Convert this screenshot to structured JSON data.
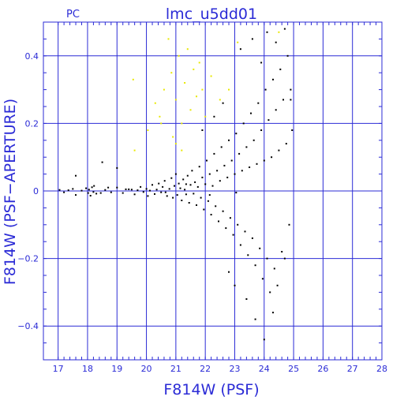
{
  "chart_data": {
    "type": "scatter",
    "title": "lmc_u5dd01",
    "corner_label": "PC",
    "xlabel": "F814W (PSF)",
    "ylabel": "F814W (PSF−APERTURE)",
    "xlim": [
      16.5,
      28
    ],
    "ylim": [
      -0.5,
      0.5
    ],
    "x_ticks": [
      17,
      18,
      19,
      20,
      21,
      22,
      23,
      24,
      25,
      26,
      27,
      28
    ],
    "y_ticks": [
      -0.4,
      -0.2,
      0,
      0.2,
      0.4
    ],
    "y_tick_labels": [
      "−0.4",
      "−0.2",
      "0",
      "0.2",
      "0.4"
    ],
    "grid": true,
    "colors": {
      "axes": "#2b2bd6",
      "grid": "#2b2bd6",
      "points_main": "#000000",
      "points_flagged": "#e8e800"
    },
    "series": [
      {
        "color": "#000000",
        "points": [
          [
            17.05,
            0.003
          ],
          [
            17.2,
            -0.004
          ],
          [
            17.35,
            0.002
          ],
          [
            17.5,
            0.006
          ],
          [
            17.6,
            -0.012
          ],
          [
            17.8,
            0.001
          ],
          [
            17.95,
            0.008
          ],
          [
            18.02,
            -0.006
          ],
          [
            18.05,
            0.004
          ],
          [
            18.1,
            -0.014
          ],
          [
            18.15,
            0.011
          ],
          [
            18.2,
            -0.003
          ],
          [
            18.22,
            0.015
          ],
          [
            18.3,
            -0.008
          ],
          [
            18.45,
            -0.006
          ],
          [
            18.6,
            0.003
          ],
          [
            18.8,
            -0.004
          ],
          [
            19.0,
            0.01
          ],
          [
            19.2,
            -0.006
          ],
          [
            19.4,
            0.005
          ],
          [
            19.5,
            0.004
          ],
          [
            19.6,
            -0.01
          ],
          [
            19.7,
            0.002
          ],
          [
            19.8,
            0.012
          ],
          [
            19.9,
            -0.003
          ],
          [
            20.0,
            0.006
          ],
          [
            20.05,
            -0.015
          ],
          [
            20.12,
            0.001
          ],
          [
            20.2,
            0.018
          ],
          [
            20.28,
            -0.009
          ],
          [
            20.35,
            0.004
          ],
          [
            20.42,
            0.022
          ],
          [
            20.5,
            -0.004
          ],
          [
            20.55,
            0.012
          ],
          [
            20.62,
            0.03
          ],
          [
            20.7,
            -0.015
          ],
          [
            20.78,
            0.006
          ],
          [
            20.85,
            0.038
          ],
          [
            20.9,
            -0.02
          ],
          [
            20.95,
            0.015
          ],
          [
            21.0,
            0.05
          ],
          [
            21.05,
            -0.012
          ],
          [
            21.1,
            0.022
          ],
          [
            21.15,
            0.008
          ],
          [
            21.2,
            -0.028
          ],
          [
            21.25,
            0.034
          ],
          [
            21.3,
            0.004
          ],
          [
            21.35,
            -0.01
          ],
          [
            21.4,
            0.045
          ],
          [
            21.45,
            -0.035
          ],
          [
            21.5,
            0.018
          ],
          [
            21.55,
            0.06
          ],
          [
            21.6,
            -0.008
          ],
          [
            21.65,
            0.026
          ],
          [
            21.7,
            -0.042
          ],
          [
            21.75,
            0.012
          ],
          [
            21.8,
            0.072
          ],
          [
            21.85,
            -0.02
          ],
          [
            21.9,
            0.04
          ],
          [
            21.95,
            -0.055
          ],
          [
            22.0,
            0.02
          ],
          [
            22.05,
            0.09
          ],
          [
            22.1,
            -0.03
          ],
          [
            22.15,
            0.05
          ],
          [
            22.2,
            -0.07
          ],
          [
            22.25,
            0.015
          ],
          [
            22.3,
            0.11
          ],
          [
            22.35,
            -0.045
          ],
          [
            22.4,
            0.06
          ],
          [
            22.45,
            -0.09
          ],
          [
            22.5,
            0.03
          ],
          [
            22.55,
            0.13
          ],
          [
            22.6,
            -0.06
          ],
          [
            22.65,
            0.075
          ],
          [
            22.7,
            -0.11
          ],
          [
            22.75,
            0.04
          ],
          [
            22.8,
            0.15
          ],
          [
            22.85,
            -0.08
          ],
          [
            22.9,
            0.09
          ],
          [
            22.95,
            -0.13
          ],
          [
            23.0,
            0.05
          ],
          [
            23.05,
            0.17
          ],
          [
            23.1,
            -0.1
          ],
          [
            23.15,
            0.11
          ],
          [
            23.2,
            -0.16
          ],
          [
            23.25,
            0.06
          ],
          [
            23.3,
            0.2
          ],
          [
            23.35,
            -0.12
          ],
          [
            23.4,
            0.13
          ],
          [
            23.45,
            -0.19
          ],
          [
            23.5,
            0.07
          ],
          [
            23.55,
            0.23
          ],
          [
            23.6,
            -0.14
          ],
          [
            23.65,
            0.15
          ],
          [
            23.7,
            -0.22
          ],
          [
            23.75,
            0.08
          ],
          [
            23.8,
            0.26
          ],
          [
            23.85,
            -0.17
          ],
          [
            23.9,
            0.18
          ],
          [
            23.95,
            -0.26
          ],
          [
            24.0,
            0.09
          ],
          [
            24.05,
            0.3
          ],
          [
            24.1,
            -0.2
          ],
          [
            24.15,
            0.21
          ],
          [
            24.2,
            -0.3
          ],
          [
            24.25,
            0.1
          ],
          [
            24.3,
            0.33
          ],
          [
            24.35,
            -0.23
          ],
          [
            24.4,
            0.24
          ],
          [
            24.45,
            -0.28
          ],
          [
            24.5,
            0.12
          ],
          [
            24.55,
            0.36
          ],
          [
            24.6,
            -0.18
          ],
          [
            24.65,
            0.27
          ],
          [
            24.7,
            -0.2
          ],
          [
            24.75,
            0.14
          ],
          [
            24.8,
            0.4
          ],
          [
            24.85,
            -0.1
          ],
          [
            24.9,
            0.3
          ],
          [
            24.95,
            0.18
          ],
          [
            23.2,
            0.42
          ],
          [
            23.6,
            0.45
          ],
          [
            23.9,
            0.38
          ],
          [
            24.1,
            0.47
          ],
          [
            24.4,
            0.44
          ],
          [
            24.7,
            0.48
          ],
          [
            23.4,
            -0.32
          ],
          [
            23.7,
            -0.38
          ],
          [
            24.0,
            -0.44
          ],
          [
            24.3,
            -0.36
          ],
          [
            22.3,
            0.22
          ],
          [
            22.6,
            0.26
          ],
          [
            21.9,
            0.18
          ],
          [
            22.8,
            -0.24
          ],
          [
            23.0,
            -0.28
          ],
          [
            19.3,
            0.005
          ],
          [
            18.7,
            0.01
          ],
          [
            17.6,
            0.045
          ],
          [
            18.5,
            0.085
          ],
          [
            19.0,
            0.068
          ],
          [
            24.9,
            0.27
          ],
          [
            23.05,
            -0.005
          ],
          [
            22.15,
            -0.012
          ],
          [
            21.35,
            0.02
          ],
          [
            20.65,
            -0.004
          ]
        ]
      },
      {
        "color": "#e8e800",
        "points": [
          [
            19.55,
            0.33
          ],
          [
            19.6,
            0.12
          ],
          [
            20.05,
            0.18
          ],
          [
            20.3,
            0.26
          ],
          [
            20.45,
            0.22
          ],
          [
            20.6,
            0.3
          ],
          [
            20.75,
            0.45
          ],
          [
            20.85,
            0.35
          ],
          [
            20.9,
            0.16
          ],
          [
            21.0,
            0.27
          ],
          [
            21.1,
            0.4
          ],
          [
            21.2,
            0.2
          ],
          [
            21.3,
            0.32
          ],
          [
            21.4,
            0.42
          ],
          [
            21.5,
            0.24
          ],
          [
            21.6,
            0.36
          ],
          [
            21.7,
            0.28
          ],
          [
            21.8,
            0.38
          ],
          [
            21.9,
            0.3
          ],
          [
            22.0,
            0.22
          ],
          [
            22.2,
            0.34
          ],
          [
            22.5,
            0.27
          ],
          [
            22.8,
            0.3
          ],
          [
            23.1,
            0.44
          ],
          [
            24.5,
            0.47
          ],
          [
            20.5,
            0.2
          ],
          [
            21.0,
            0.14
          ],
          [
            21.2,
            0.12
          ]
        ]
      }
    ]
  }
}
